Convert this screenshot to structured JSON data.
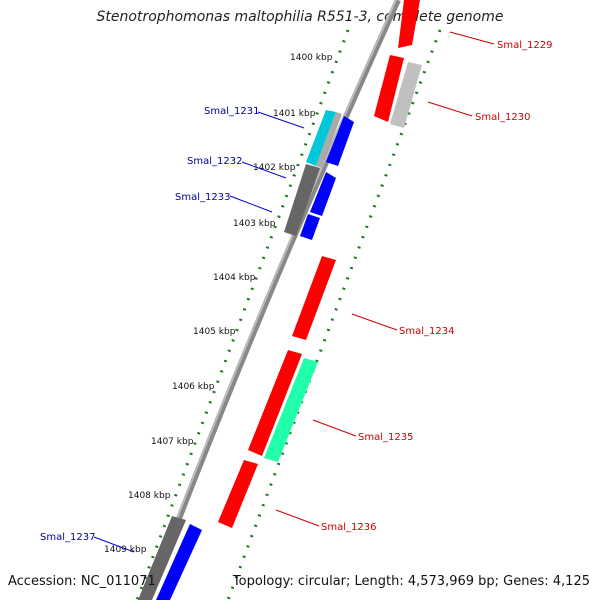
{
  "title": "Stenotrophomonas maltophilia R551-3, complete genome",
  "footer": {
    "accession": "Accession: NC_011071",
    "topology": "Topology: circular; Length: 4,573,969 bp; Genes: 4,125"
  },
  "ticks": [
    "1400 kbp",
    "1401 kbp",
    "1402 kbp",
    "1403 kbp",
    "1404 kbp",
    "1405 kbp",
    "1406 kbp",
    "1407 kbp",
    "1408 kbp",
    "1409 kbp"
  ],
  "genes": [
    {
      "name": "Smal_1229",
      "strand": "forward",
      "color": "#ff0000"
    },
    {
      "name": "Smal_1230",
      "strand": "forward",
      "color": "#ff0000"
    },
    {
      "name": "Smal_1231",
      "strand": "reverse",
      "color": "#00c8d8"
    },
    {
      "name": "Smal_1232",
      "strand": "reverse",
      "color": "#0000ff"
    },
    {
      "name": "Smal_1233",
      "strand": "reverse",
      "color": "#0000ff"
    },
    {
      "name": "Smal_1234",
      "strand": "forward",
      "color": "#ff0000"
    },
    {
      "name": "Smal_1235",
      "strand": "forward",
      "color": "#00ff99"
    },
    {
      "name": "Smal_1236",
      "strand": "forward",
      "color": "#ff0000"
    },
    {
      "name": "Smal_1237",
      "strand": "reverse",
      "color": "#0000ff"
    }
  ],
  "colors": {
    "forward_label": "#cc0000",
    "reverse_label": "#000099",
    "tick_mark": "#1e7a1e",
    "backbone": "#777777",
    "gray_feature": "#666666"
  }
}
